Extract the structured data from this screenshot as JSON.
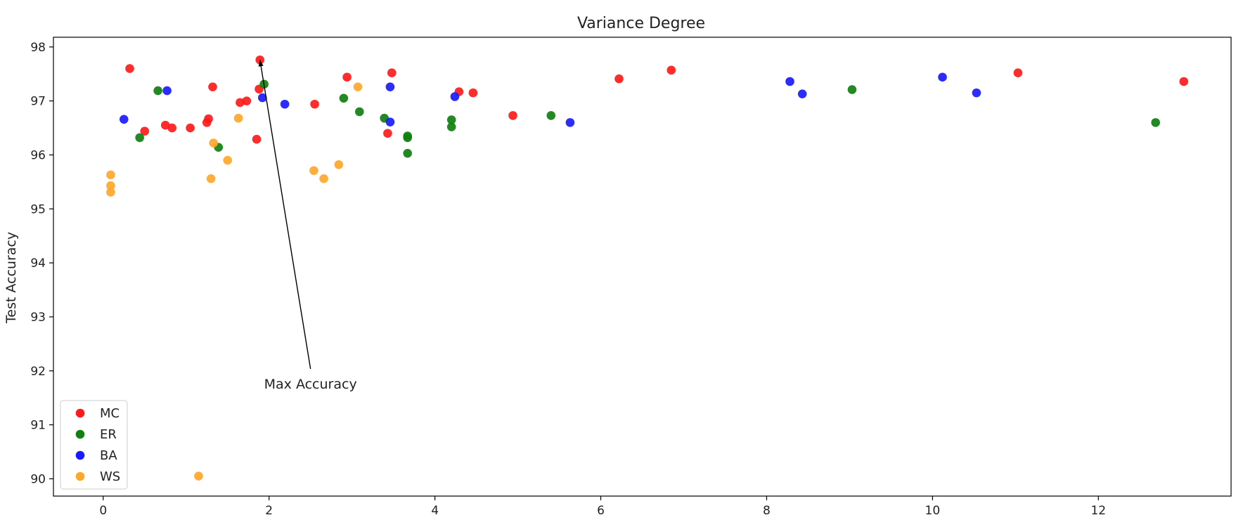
{
  "chart_data": {
    "type": "scatter",
    "title": "Variance Degree",
    "xlabel": "",
    "ylabel": "Test Accuracy",
    "xlim": [
      -0.6,
      13.6
    ],
    "ylim": [
      89.68,
      98.18
    ],
    "xticks": [
      0,
      2,
      4,
      6,
      8,
      10,
      12
    ],
    "yticks": [
      90,
      91,
      92,
      93,
      94,
      95,
      96,
      97,
      98
    ],
    "grid": false,
    "legend_position": "lower-left",
    "series": [
      {
        "name": "MC",
        "color": "#ff1a1a",
        "points": [
          [
            0.32,
            97.6
          ],
          [
            0.5,
            96.44
          ],
          [
            0.75,
            96.55
          ],
          [
            0.83,
            96.5
          ],
          [
            1.05,
            96.5
          ],
          [
            1.25,
            96.6
          ],
          [
            1.27,
            96.67
          ],
          [
            1.32,
            97.26
          ],
          [
            1.65,
            96.97
          ],
          [
            1.73,
            97.0
          ],
          [
            1.85,
            96.29
          ],
          [
            1.88,
            97.22
          ],
          [
            1.89,
            97.76
          ],
          [
            2.55,
            96.94
          ],
          [
            2.94,
            97.44
          ],
          [
            3.43,
            96.4
          ],
          [
            3.48,
            97.52
          ],
          [
            4.29,
            97.17
          ],
          [
            4.46,
            97.15
          ],
          [
            4.94,
            96.73
          ],
          [
            6.22,
            97.41
          ],
          [
            6.85,
            97.57
          ],
          [
            11.03,
            97.52
          ],
          [
            13.03,
            97.36
          ]
        ]
      },
      {
        "name": "ER",
        "color": "#108010",
        "points": [
          [
            0.44,
            96.32
          ],
          [
            0.66,
            97.19
          ],
          [
            1.39,
            96.14
          ],
          [
            1.94,
            97.31
          ],
          [
            2.9,
            97.05
          ],
          [
            3.09,
            96.8
          ],
          [
            3.39,
            96.68
          ],
          [
            3.67,
            96.32
          ],
          [
            3.67,
            96.35
          ],
          [
            3.67,
            96.03
          ],
          [
            4.2,
            96.52
          ],
          [
            4.2,
            96.65
          ],
          [
            5.4,
            96.73
          ],
          [
            9.03,
            97.21
          ],
          [
            12.69,
            96.6
          ]
        ]
      },
      {
        "name": "BA",
        "color": "#1a1aff",
        "points": [
          [
            0.25,
            96.66
          ],
          [
            0.77,
            97.19
          ],
          [
            1.92,
            97.06
          ],
          [
            2.19,
            96.94
          ],
          [
            3.46,
            97.26
          ],
          [
            3.46,
            96.61
          ],
          [
            4.24,
            97.08
          ],
          [
            5.63,
            96.6
          ],
          [
            8.28,
            97.36
          ],
          [
            8.43,
            97.13
          ],
          [
            10.12,
            97.44
          ],
          [
            10.53,
            97.15
          ]
        ]
      },
      {
        "name": "WS",
        "color": "#ffa72a",
        "points": [
          [
            0.09,
            95.63
          ],
          [
            0.09,
            95.43
          ],
          [
            0.09,
            95.31
          ],
          [
            1.15,
            90.05
          ],
          [
            1.3,
            95.56
          ],
          [
            1.33,
            96.22
          ],
          [
            1.5,
            95.9
          ],
          [
            1.63,
            96.68
          ],
          [
            2.54,
            95.71
          ],
          [
            2.66,
            95.56
          ],
          [
            2.84,
            95.82
          ],
          [
            3.07,
            97.26
          ]
        ]
      }
    ],
    "annotation": {
      "text": "Max Accuracy",
      "text_at": [
        2.5,
        91.75
      ],
      "arrow_to": [
        1.89,
        97.76
      ]
    }
  }
}
